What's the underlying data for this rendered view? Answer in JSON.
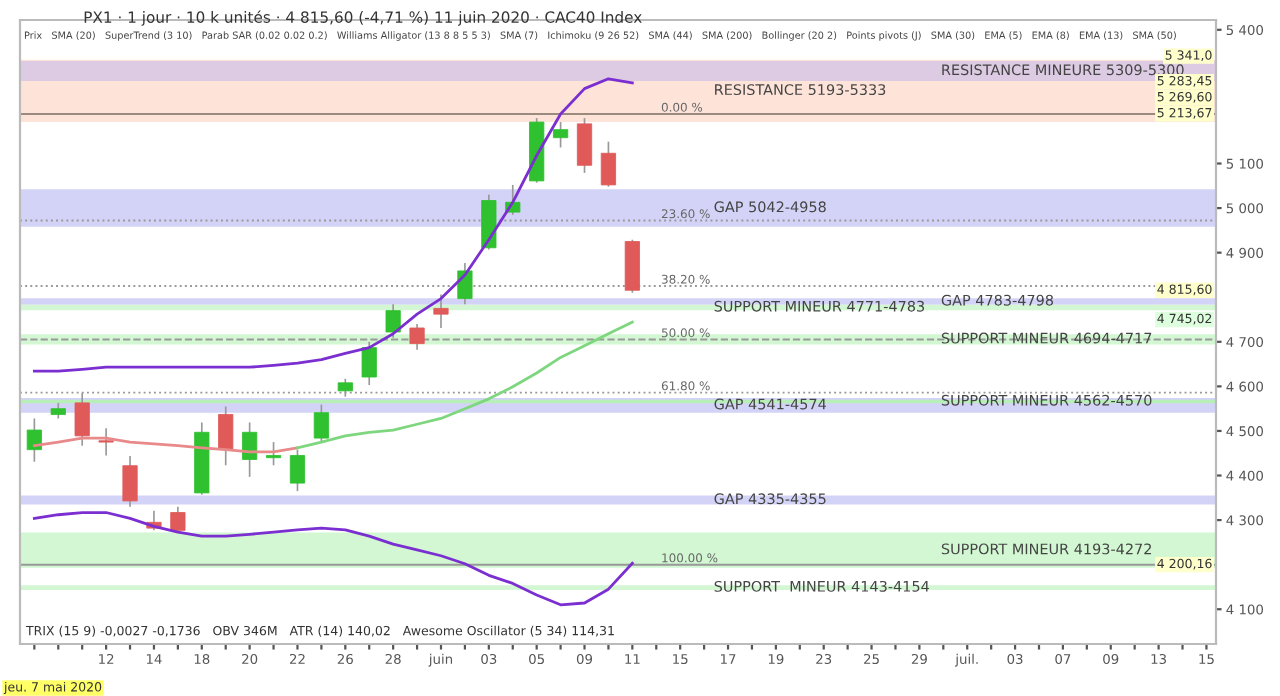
{
  "chart_data": {
    "type": "candlestick",
    "title": "PX1 · 1 jour · 10 k unités · 4 815,60 (-4,71 %) 11 juin 2020 · CAC40 Index",
    "subtitle": "Prix   SMA (20)   SuperTrend (3 10)   Parab SAR (0.02 0.02 0.2)   Williams Alligator (13 8 8 5 5 3)   SMA (7)   Ichimoku (9 26 52)   SMA (44)   SMA (200)   Bollinger (20 2)   Points pivots (J)   SMA (30)   EMA (5)   EMA (8)   EMA (13)   SMA (50)",
    "categories": [
      null,
      null,
      null,
      "12",
      null,
      "14",
      null,
      "18",
      null,
      "20",
      null,
      "22",
      null,
      "26",
      null,
      "28",
      null,
      "juin",
      null,
      "03",
      null,
      "05",
      null,
      "09",
      null,
      "11",
      null,
      "15",
      null,
      "17",
      null,
      "19",
      null,
      "23",
      null,
      "25",
      null,
      "29",
      null,
      "juil.",
      null,
      "03",
      null,
      "07",
      null,
      "09",
      null,
      "13",
      null,
      "15"
    ],
    "ohlc": [
      [
        4458,
        4528,
        4431,
        4502
      ],
      [
        4537,
        4563,
        4528,
        4550
      ],
      [
        4563,
        4585,
        4467,
        4489
      ],
      [
        4478,
        4506,
        4445,
        4475
      ],
      [
        4422,
        4444,
        4330,
        4343
      ],
      [
        4295,
        4321,
        4277,
        4282
      ],
      [
        4317,
        4330,
        4273,
        4277
      ],
      [
        4361,
        4519,
        4357,
        4497
      ],
      [
        4537,
        4555,
        4423,
        4458
      ],
      [
        4436,
        4519,
        4397,
        4497
      ],
      [
        4440,
        4475,
        4423,
        4445
      ],
      [
        4383,
        4458,
        4365,
        4445
      ],
      [
        4484,
        4559,
        4475,
        4541
      ],
      [
        4590,
        4617,
        4577,
        4608
      ],
      [
        4621,
        4700,
        4603,
        4687
      ],
      [
        4722,
        4784,
        4709,
        4770
      ],
      [
        4731,
        4740,
        4682,
        4696
      ],
      [
        4775,
        4806,
        4731,
        4762
      ],
      [
        4797,
        4877,
        4784,
        4859
      ],
      [
        4911,
        5030,
        4907,
        5017
      ],
      [
        4991,
        5052,
        4985,
        5013
      ],
      [
        5061,
        5202,
        5057,
        5193
      ],
      [
        5158,
        5193,
        5136,
        5176
      ],
      [
        5189,
        5202,
        5079,
        5096
      ],
      [
        5123,
        5149,
        5048,
        5052
      ],
      [
        4925,
        4929,
        4810,
        4815.6
      ],
      null,
      null,
      null,
      null,
      null,
      null,
      null,
      null,
      null,
      null,
      null,
      null,
      null,
      null,
      null,
      null,
      null,
      null,
      null,
      null,
      null,
      null,
      null,
      null
    ],
    "series": [
      {
        "type": "line",
        "color": "#7b2fd0",
        "values": [
          4634,
          4634,
          4638,
          4643,
          4643,
          4643,
          4643,
          4643,
          4643,
          4643,
          4647,
          4652,
          4660,
          4674,
          4687,
          4718,
          4762,
          4797,
          4850,
          4929,
          5013,
          5118,
          5211,
          5268,
          5290,
          5281,
          null,
          null,
          null,
          null,
          null,
          null,
          null,
          null,
          null,
          null,
          null,
          null,
          null,
          null,
          null,
          null,
          null,
          null,
          null,
          null,
          null,
          null,
          null,
          null
        ]
      },
      {
        "type": "line",
        "color": "#7b2fd0",
        "values": [
          4304,
          4312,
          4317,
          4317,
          4304,
          4286,
          4273,
          4264,
          4264,
          4268,
          4273,
          4278,
          4282,
          4278,
          4264,
          4246,
          4233,
          4220,
          4202,
          4176,
          4158,
          4132,
          4110,
          4114,
          4145,
          4203,
          null,
          null,
          null,
          null,
          null,
          null,
          null,
          null,
          null,
          null,
          null,
          null,
          null,
          null,
          null,
          null,
          null,
          null,
          null,
          null,
          null,
          null,
          null,
          null
        ]
      },
      {
        "type": "line",
        "color": "#e88a8a",
        "values": [
          4467,
          4475,
          4484,
          4484,
          4475,
          4471,
          4467,
          4462,
          4458,
          4453,
          4453,
          4462,
          null,
          null,
          null,
          null,
          null,
          null,
          null,
          null,
          null,
          null,
          null,
          null,
          null,
          null,
          null,
          null,
          null,
          null,
          null,
          null,
          null,
          null,
          null,
          null,
          null,
          null,
          null,
          null,
          null,
          null,
          null,
          null,
          null,
          null,
          null,
          null,
          null,
          null
        ]
      },
      {
        "type": "line",
        "color": "#7ed67e",
        "values": [
          null,
          null,
          null,
          null,
          null,
          null,
          null,
          null,
          null,
          null,
          null,
          4462,
          4475,
          4489,
          4497,
          4502,
          4515,
          4528,
          4550,
          4572,
          4599,
          4630,
          4665,
          4691,
          4718,
          4744,
          null,
          null,
          null,
          null,
          null,
          null,
          null,
          null,
          null,
          null,
          null,
          null,
          null,
          null,
          null,
          null,
          null,
          null,
          null,
          null,
          null,
          null,
          null,
          null
        ]
      }
    ],
    "bands": [
      {
        "axis": "y",
        "from": 5193,
        "to": 5333,
        "label": "RESISTANCE 5193-5333",
        "color": "#fde3d8"
      },
      {
        "axis": "y",
        "from": 5285,
        "to": 5330,
        "label": "RESISTANCE MINEURE 5309-5300",
        "color": "#dccbe3"
      },
      {
        "axis": "y",
        "from": 4958,
        "to": 5042,
        "label": "GAP 5042-4958",
        "color": "#d3d3f7"
      },
      {
        "axis": "y",
        "from": 4783,
        "to": 4798,
        "label": "GAP 4783-4798",
        "color": "#d3d3f7"
      },
      {
        "axis": "y",
        "from": 4771,
        "to": 4783,
        "label": "SUPPORT MINEUR 4771-4783",
        "color": "#d2f7d2"
      },
      {
        "axis": "y",
        "from": 4694,
        "to": 4717,
        "label": "SUPPORT MINEUR 4694-4717",
        "color": "#d2f7d2"
      },
      {
        "axis": "y",
        "from": 4541,
        "to": 4574,
        "label": "GAP 4541-4574",
        "color": "#d3d3f7"
      },
      {
        "axis": "y",
        "from": 4562,
        "to": 4570,
        "label": "SUPPORT MINEUR 4562-4570",
        "color": "#b8efb8"
      },
      {
        "axis": "y",
        "from": 4335,
        "to": 4355,
        "label": "GAP 4335-4355",
        "color": "#d3d3f7"
      },
      {
        "axis": "y",
        "from": 4193,
        "to": 4272,
        "label": "SUPPORT MINEUR 4193-4272",
        "color": "#d2f7d2"
      },
      {
        "axis": "y",
        "from": 4143,
        "to": 4154,
        "label": "SUPPORT  MINEUR 4143-4154",
        "color": "#d2f7d2"
      }
    ],
    "ref_lines": [
      {
        "axis": "y",
        "value": 5211,
        "color": "#9a8a80",
        "line_style": "solid"
      },
      {
        "axis": "y",
        "value": 4972,
        "color": "#999999",
        "line_style": "dotted"
      },
      {
        "axis": "y",
        "value": 4825,
        "color": "#999999",
        "line_style": "dotted"
      },
      {
        "axis": "y",
        "value": 4705,
        "color": "#999999",
        "line_style": "dashed"
      },
      {
        "axis": "y",
        "value": 4586,
        "color": "#999999",
        "line_style": "dotted"
      },
      {
        "axis": "y",
        "value": 4200,
        "color": "#999999",
        "line_style": "solid"
      }
    ],
    "annotations": [
      "TRIX (15 9) -0,0027 -0,1736   OBV 346M   ATR (14) 140,02   Awesome Oscillator (5 34) 114,31",
      "jeu. 7 mai 2020",
      {
        "text": "0.00 %",
        "y": 5211
      },
      {
        "text": "23.60 %",
        "y": 4972
      },
      {
        "text": "38.20 %",
        "y": 4825
      },
      {
        "text": "50.00 %",
        "y": 4705
      },
      {
        "text": "61.80 %",
        "y": 4586
      },
      {
        "text": "100.00 %",
        "y": 4200
      },
      {
        "text": "5 341,0",
        "y": 5341
      },
      {
        "text": "5 283,45",
        "y": 5283.45
      },
      {
        "text": "5 269,60",
        "y": 5269.6
      },
      {
        "text": "5 213,67",
        "y": 5213.67
      },
      {
        "text": "4 815,60",
        "y": 4815.6
      },
      "4 745,02",
      {
        "text": "4 200,16",
        "y": 4200.16
      }
    ],
    "ylim": [
      4022,
      5422
    ],
    "yticks": [
      {
        "value": 4100,
        "label": "4 100"
      },
      {
        "value": 4300,
        "label": "4 300"
      },
      {
        "value": 4400,
        "label": "4 400"
      },
      {
        "value": 4500,
        "label": "4 500"
      },
      {
        "value": 4600,
        "label": "4 600"
      },
      {
        "value": 4700,
        "label": "4 700"
      },
      {
        "value": 4900,
        "label": "4 900"
      },
      {
        "value": 5000,
        "label": "5 000"
      },
      {
        "value": 5100,
        "label": "5 100"
      },
      {
        "value": 5400,
        "label": "5 400"
      }
    ],
    "grid": false
  }
}
